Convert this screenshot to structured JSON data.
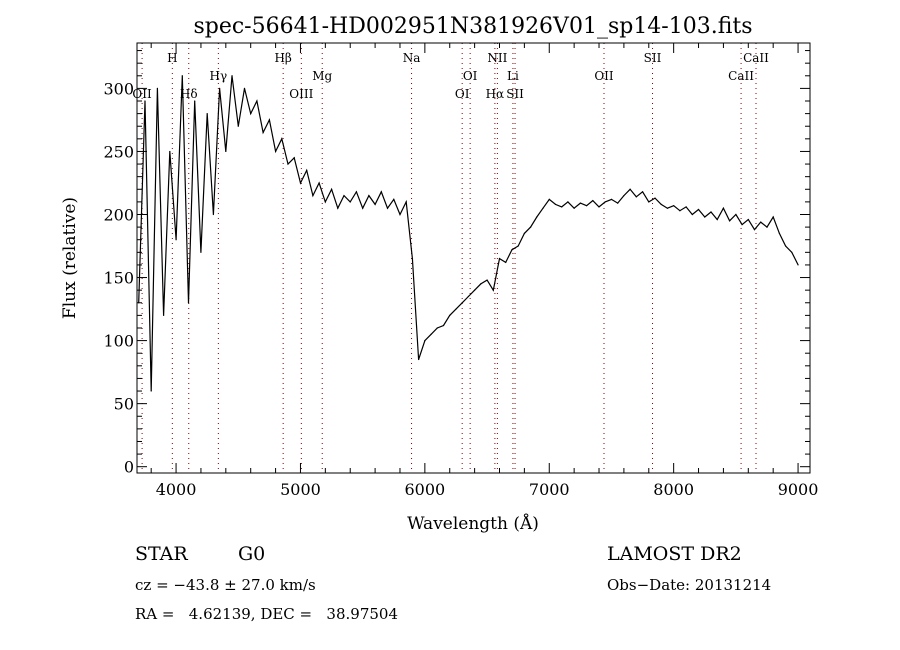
{
  "chart_data": {
    "type": "line",
    "title": "spec-56641-HD002951N381926V01_sp14-103.fits",
    "xlabel": "Wavelength (Å)",
    "ylabel": "Flux (relative)",
    "xlim": [
      3686,
      9096
    ],
    "ylim": [
      -5,
      336
    ],
    "xticks": [
      "4000",
      "5000",
      "6000",
      "7000",
      "8000",
      "9000"
    ],
    "yticks": [
      "0",
      "50",
      "100",
      "150",
      "200",
      "250",
      "300"
    ],
    "grid": false,
    "line_color": "#000000",
    "marker_color": "#8b0000",
    "lines": [
      {
        "name": "OII",
        "w": 3727,
        "row": 3
      },
      {
        "name": "H",
        "w": 3970,
        "row": 1
      },
      {
        "name": "Hδ",
        "w": 4102,
        "row": 3
      },
      {
        "name": "Hγ",
        "w": 4340,
        "row": 2
      },
      {
        "name": "Hβ",
        "w": 4861,
        "row": 1
      },
      {
        "name": "OIII",
        "w": 5007,
        "row": 3
      },
      {
        "name": "Mg",
        "w": 5175,
        "row": 2
      },
      {
        "name": "Na",
        "w": 5893,
        "row": 1
      },
      {
        "name": "OI",
        "w": 6300,
        "row": 3
      },
      {
        "name": "OI",
        "w": 6364,
        "row": 2
      },
      {
        "name": "NII",
        "w": 6583,
        "row": 1
      },
      {
        "name": "Hα",
        "w": 6563,
        "row": 3
      },
      {
        "name": "Li",
        "w": 6708,
        "row": 2
      },
      {
        "name": "SII",
        "w": 6725,
        "row": 3
      },
      {
        "name": "OII",
        "w": 7440,
        "row": 2
      },
      {
        "name": "SII",
        "w": 7830,
        "row": 1
      },
      {
        "name": "CaII",
        "w": 8542,
        "row": 2
      },
      {
        "name": "CaII",
        "w": 8662,
        "row": 1
      }
    ],
    "x": [
      3700,
      3750,
      3800,
      3850,
      3900,
      3950,
      4000,
      4050,
      4100,
      4150,
      4200,
      4250,
      4300,
      4350,
      4400,
      4450,
      4500,
      4550,
      4600,
      4650,
      4700,
      4750,
      4800,
      4850,
      4900,
      4950,
      5000,
      5050,
      5100,
      5150,
      5200,
      5250,
      5300,
      5350,
      5400,
      5450,
      5500,
      5550,
      5600,
      5650,
      5700,
      5750,
      5800,
      5850,
      5900,
      5950,
      6000,
      6050,
      6100,
      6150,
      6200,
      6250,
      6300,
      6350,
      6400,
      6450,
      6500,
      6550,
      6600,
      6650,
      6700,
      6750,
      6800,
      6850,
      6900,
      6950,
      7000,
      7050,
      7100,
      7150,
      7200,
      7250,
      7300,
      7350,
      7400,
      7450,
      7500,
      7550,
      7600,
      7650,
      7700,
      7750,
      7800,
      7850,
      7900,
      7950,
      8000,
      8050,
      8100,
      8150,
      8200,
      8250,
      8300,
      8350,
      8400,
      8450,
      8500,
      8550,
      8600,
      8650,
      8700,
      8750,
      8800,
      8850,
      8900,
      8950,
      9000
    ],
    "y": [
      130,
      290,
      60,
      300,
      120,
      250,
      180,
      310,
      130,
      290,
      170,
      280,
      200,
      300,
      250,
      310,
      270,
      300,
      280,
      290,
      265,
      275,
      250,
      260,
      240,
      245,
      225,
      235,
      215,
      225,
      210,
      220,
      205,
      215,
      210,
      218,
      205,
      215,
      208,
      218,
      205,
      212,
      200,
      210,
      165,
      85,
      100,
      105,
      110,
      112,
      120,
      125,
      130,
      135,
      140,
      145,
      148,
      140,
      165,
      162,
      172,
      175,
      185,
      190,
      198,
      205,
      212,
      208,
      206,
      210,
      205,
      209,
      207,
      211,
      206,
      210,
      212,
      209,
      215,
      220,
      214,
      218,
      210,
      213,
      208,
      205,
      207,
      203,
      206,
      200,
      204,
      198,
      202,
      196,
      205,
      195,
      200,
      192,
      196,
      188,
      194,
      190,
      198,
      185,
      175,
      170,
      160
    ]
  },
  "info": {
    "class": "STAR",
    "subclass": "G0",
    "survey": "LAMOST DR2",
    "cz": "cz = −43.8 ± 27.0 km/s",
    "obs_date": "Obs−Date: 20131214",
    "coords": "RA =   4.62139, DEC =   38.97504"
  }
}
